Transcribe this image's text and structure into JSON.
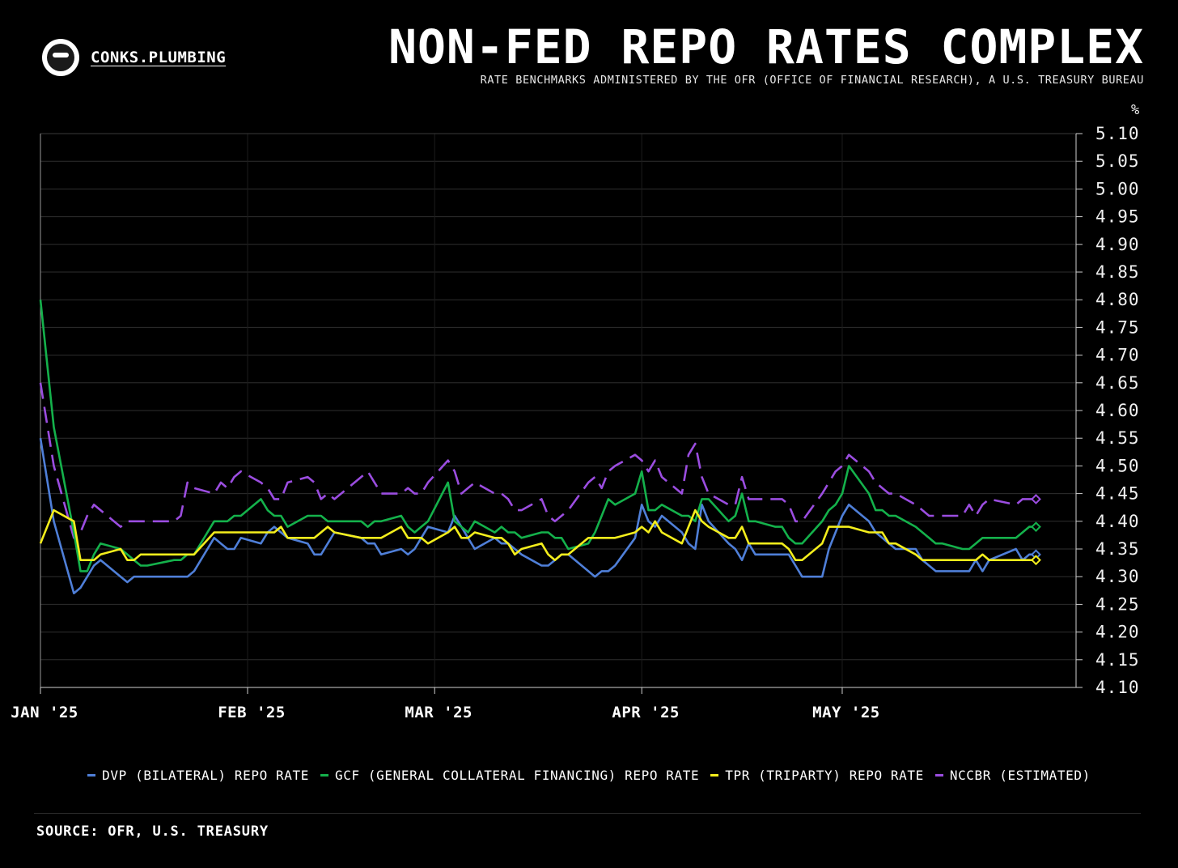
{
  "brand": {
    "name": "CONKS.PLUMBING",
    "logo_icon": "ninja-avatar-icon"
  },
  "header": {
    "title": "NON-FED REPO RATES COMPLEX",
    "subtitle": "RATE BENCHMARKS ADMINISTERED BY THE OFR (OFFICE OF FINANCIAL RESEARCH), A U.S. TREASURY BUREAU"
  },
  "footer": {
    "source": "SOURCE: OFR, U.S. TREASURY"
  },
  "chart_data": {
    "type": "line",
    "title": "NON-FED REPO RATES COMPLEX",
    "ylabel": "%",
    "ylim": [
      4.1,
      5.1
    ],
    "xlim": [
      "2025-01-01",
      "2025-06-05"
    ],
    "y_ticks": [
      "4.10",
      "4.15",
      "4.20",
      "4.25",
      "4.30",
      "4.35",
      "4.40",
      "4.45",
      "4.50",
      "4.55",
      "4.60",
      "4.65",
      "4.70",
      "4.75",
      "4.80",
      "4.85",
      "4.90",
      "4.95",
      "5.00",
      "5.05",
      "5.10"
    ],
    "x_ticks": [
      {
        "label": "JAN '25",
        "date": "2025-01-01"
      },
      {
        "label": "FEB '25",
        "date": "2025-02-01"
      },
      {
        "label": "MAR '25",
        "date": "2025-03-01"
      },
      {
        "label": "APR '25",
        "date": "2025-04-01"
      },
      {
        "label": "MAY '25",
        "date": "2025-05-01"
      }
    ],
    "grid": true,
    "y_axis_side": "right",
    "legend_position": "bottom",
    "series": [
      {
        "name": "DVP (BILATERAL) REPO RATE",
        "color": "#4f7fd8",
        "dash": "solid",
        "x": [
          "2025-01-01",
          "2025-01-03",
          "2025-01-06",
          "2025-01-07",
          "2025-01-08",
          "2025-01-09",
          "2025-01-10",
          "2025-01-13",
          "2025-01-14",
          "2025-01-15",
          "2025-01-16",
          "2025-01-17",
          "2025-01-21",
          "2025-01-22",
          "2025-01-23",
          "2025-01-24",
          "2025-01-27",
          "2025-01-28",
          "2025-01-29",
          "2025-01-30",
          "2025-01-31",
          "2025-02-03",
          "2025-02-04",
          "2025-02-05",
          "2025-02-06",
          "2025-02-07",
          "2025-02-10",
          "2025-02-11",
          "2025-02-12",
          "2025-02-13",
          "2025-02-14",
          "2025-02-18",
          "2025-02-19",
          "2025-02-20",
          "2025-02-21",
          "2025-02-24",
          "2025-02-25",
          "2025-02-26",
          "2025-02-27",
          "2025-02-28",
          "2025-03-03",
          "2025-03-04",
          "2025-03-05",
          "2025-03-06",
          "2025-03-07",
          "2025-03-10",
          "2025-03-11",
          "2025-03-12",
          "2025-03-13",
          "2025-03-14",
          "2025-03-17",
          "2025-03-18",
          "2025-03-19",
          "2025-03-20",
          "2025-03-21",
          "2025-03-24",
          "2025-03-25",
          "2025-03-26",
          "2025-03-27",
          "2025-03-28",
          "2025-03-31",
          "2025-04-01",
          "2025-04-02",
          "2025-04-03",
          "2025-04-04",
          "2025-04-07",
          "2025-04-08",
          "2025-04-09",
          "2025-04-10",
          "2025-04-11",
          "2025-04-14",
          "2025-04-15",
          "2025-04-16",
          "2025-04-17",
          "2025-04-18",
          "2025-04-21",
          "2025-04-22",
          "2025-04-23",
          "2025-04-24",
          "2025-04-25",
          "2025-04-28",
          "2025-04-29",
          "2025-04-30",
          "2025-05-01",
          "2025-05-02",
          "2025-05-05",
          "2025-05-06",
          "2025-05-07",
          "2025-05-08",
          "2025-05-09",
          "2025-05-12",
          "2025-05-13",
          "2025-05-14",
          "2025-05-15",
          "2025-05-16",
          "2025-05-19",
          "2025-05-20",
          "2025-05-21",
          "2025-05-22",
          "2025-05-23",
          "2025-05-27",
          "2025-05-28",
          "2025-05-29",
          "2025-05-30"
        ],
        "values": [
          4.55,
          4.4,
          4.27,
          4.28,
          4.3,
          4.32,
          4.33,
          4.3,
          4.29,
          4.3,
          4.3,
          4.3,
          4.3,
          4.3,
          4.3,
          4.31,
          4.37,
          4.36,
          4.35,
          4.35,
          4.37,
          4.36,
          4.38,
          4.39,
          4.38,
          4.37,
          4.36,
          4.34,
          4.34,
          4.36,
          4.38,
          4.37,
          4.36,
          4.36,
          4.34,
          4.35,
          4.34,
          4.35,
          4.37,
          4.39,
          4.38,
          4.41,
          4.39,
          4.37,
          4.35,
          4.37,
          4.36,
          4.36,
          4.35,
          4.34,
          4.32,
          4.32,
          4.33,
          4.34,
          4.34,
          4.31,
          4.3,
          4.31,
          4.31,
          4.32,
          4.37,
          4.43,
          4.4,
          4.39,
          4.41,
          4.38,
          4.36,
          4.35,
          4.43,
          4.4,
          4.36,
          4.35,
          4.33,
          4.36,
          4.34,
          4.34,
          4.34,
          4.34,
          4.32,
          4.3,
          4.3,
          4.35,
          4.38,
          4.41,
          4.43,
          4.4,
          4.38,
          4.37,
          4.36,
          4.35,
          4.35,
          4.33,
          4.32,
          4.31,
          4.31,
          4.31,
          4.31,
          4.33,
          4.31,
          4.33,
          4.35,
          4.33,
          4.34,
          4.34
        ]
      },
      {
        "name": "GCF (GENERAL COLLATERAL FINANCING) REPO RATE",
        "color": "#14b14b",
        "dash": "solid",
        "x": [
          "2025-01-01",
          "2025-01-03",
          "2025-01-06",
          "2025-01-07",
          "2025-01-08",
          "2025-01-09",
          "2025-01-10",
          "2025-01-13",
          "2025-01-14",
          "2025-01-15",
          "2025-01-16",
          "2025-01-17",
          "2025-01-21",
          "2025-01-22",
          "2025-01-23",
          "2025-01-24",
          "2025-01-27",
          "2025-01-28",
          "2025-01-29",
          "2025-01-30",
          "2025-01-31",
          "2025-02-03",
          "2025-02-04",
          "2025-02-05",
          "2025-02-06",
          "2025-02-07",
          "2025-02-10",
          "2025-02-11",
          "2025-02-12",
          "2025-02-13",
          "2025-02-14",
          "2025-02-18",
          "2025-02-19",
          "2025-02-20",
          "2025-02-21",
          "2025-02-24",
          "2025-02-25",
          "2025-02-26",
          "2025-02-27",
          "2025-02-28",
          "2025-03-03",
          "2025-03-04",
          "2025-03-05",
          "2025-03-06",
          "2025-03-07",
          "2025-03-10",
          "2025-03-11",
          "2025-03-12",
          "2025-03-13",
          "2025-03-14",
          "2025-03-17",
          "2025-03-18",
          "2025-03-19",
          "2025-03-20",
          "2025-03-21",
          "2025-03-24",
          "2025-03-25",
          "2025-03-26",
          "2025-03-27",
          "2025-03-28",
          "2025-03-31",
          "2025-04-01",
          "2025-04-02",
          "2025-04-03",
          "2025-04-04",
          "2025-04-07",
          "2025-04-08",
          "2025-04-09",
          "2025-04-10",
          "2025-04-11",
          "2025-04-14",
          "2025-04-15",
          "2025-04-16",
          "2025-04-17",
          "2025-04-18",
          "2025-04-21",
          "2025-04-22",
          "2025-04-23",
          "2025-04-24",
          "2025-04-25",
          "2025-04-28",
          "2025-04-29",
          "2025-04-30",
          "2025-05-01",
          "2025-05-02",
          "2025-05-05",
          "2025-05-06",
          "2025-05-07",
          "2025-05-08",
          "2025-05-09",
          "2025-05-12",
          "2025-05-13",
          "2025-05-14",
          "2025-05-15",
          "2025-05-16",
          "2025-05-19",
          "2025-05-20",
          "2025-05-21",
          "2025-05-22",
          "2025-05-23",
          "2025-05-27",
          "2025-05-28",
          "2025-05-29",
          "2025-05-30"
        ],
        "values": [
          4.8,
          4.57,
          4.38,
          4.31,
          4.31,
          4.34,
          4.36,
          4.35,
          4.34,
          4.33,
          4.32,
          4.32,
          4.33,
          4.33,
          4.34,
          4.34,
          4.4,
          4.4,
          4.4,
          4.41,
          4.41,
          4.44,
          4.42,
          4.41,
          4.41,
          4.39,
          4.41,
          4.41,
          4.41,
          4.4,
          4.4,
          4.4,
          4.39,
          4.4,
          4.4,
          4.41,
          4.39,
          4.38,
          4.39,
          4.4,
          4.47,
          4.4,
          4.39,
          4.38,
          4.4,
          4.38,
          4.39,
          4.38,
          4.38,
          4.37,
          4.38,
          4.38,
          4.37,
          4.37,
          4.35,
          4.36,
          4.38,
          4.41,
          4.44,
          4.43,
          4.45,
          4.49,
          4.42,
          4.42,
          4.43,
          4.41,
          4.41,
          4.4,
          4.44,
          4.44,
          4.4,
          4.41,
          4.45,
          4.4,
          4.4,
          4.39,
          4.39,
          4.37,
          4.36,
          4.36,
          4.4,
          4.42,
          4.43,
          4.45,
          4.5,
          4.45,
          4.42,
          4.42,
          4.41,
          4.41,
          4.39,
          4.38,
          4.37,
          4.36,
          4.36,
          4.35,
          4.35,
          4.36,
          4.37,
          4.37,
          4.37,
          4.38,
          4.39,
          4.39
        ]
      },
      {
        "name": "TPR (TRIPARTY) REPO RATE",
        "color": "#f4ee1c",
        "dash": "solid",
        "x": [
          "2025-01-01",
          "2025-01-03",
          "2025-01-06",
          "2025-01-07",
          "2025-01-08",
          "2025-01-09",
          "2025-01-10",
          "2025-01-13",
          "2025-01-14",
          "2025-01-15",
          "2025-01-16",
          "2025-01-17",
          "2025-01-21",
          "2025-01-22",
          "2025-01-23",
          "2025-01-24",
          "2025-01-27",
          "2025-01-28",
          "2025-01-29",
          "2025-01-30",
          "2025-01-31",
          "2025-02-03",
          "2025-02-04",
          "2025-02-05",
          "2025-02-06",
          "2025-02-07",
          "2025-02-10",
          "2025-02-11",
          "2025-02-12",
          "2025-02-13",
          "2025-02-14",
          "2025-02-18",
          "2025-02-19",
          "2025-02-20",
          "2025-02-21",
          "2025-02-24",
          "2025-02-25",
          "2025-02-26",
          "2025-02-27",
          "2025-02-28",
          "2025-03-03",
          "2025-03-04",
          "2025-03-05",
          "2025-03-06",
          "2025-03-07",
          "2025-03-10",
          "2025-03-11",
          "2025-03-12",
          "2025-03-13",
          "2025-03-14",
          "2025-03-17",
          "2025-03-18",
          "2025-03-19",
          "2025-03-20",
          "2025-03-21",
          "2025-03-24",
          "2025-03-25",
          "2025-03-26",
          "2025-03-27",
          "2025-03-28",
          "2025-03-31",
          "2025-04-01",
          "2025-04-02",
          "2025-04-03",
          "2025-04-04",
          "2025-04-07",
          "2025-04-08",
          "2025-04-09",
          "2025-04-10",
          "2025-04-11",
          "2025-04-14",
          "2025-04-15",
          "2025-04-16",
          "2025-04-17",
          "2025-04-18",
          "2025-04-21",
          "2025-04-22",
          "2025-04-23",
          "2025-04-24",
          "2025-04-25",
          "2025-04-28",
          "2025-04-29",
          "2025-04-30",
          "2025-05-01",
          "2025-05-02",
          "2025-05-05",
          "2025-05-06",
          "2025-05-07",
          "2025-05-08",
          "2025-05-09",
          "2025-05-12",
          "2025-05-13",
          "2025-05-14",
          "2025-05-15",
          "2025-05-16",
          "2025-05-19",
          "2025-05-20",
          "2025-05-21",
          "2025-05-22",
          "2025-05-23",
          "2025-05-27",
          "2025-05-28",
          "2025-05-29",
          "2025-05-30"
        ],
        "values": [
          4.36,
          4.42,
          4.4,
          4.33,
          4.33,
          4.33,
          4.34,
          4.35,
          4.33,
          4.33,
          4.34,
          4.34,
          4.34,
          4.34,
          4.34,
          4.34,
          4.38,
          4.38,
          4.38,
          4.38,
          4.38,
          4.38,
          4.38,
          4.38,
          4.39,
          4.37,
          4.37,
          4.37,
          4.38,
          4.39,
          4.38,
          4.37,
          4.37,
          4.37,
          4.37,
          4.39,
          4.37,
          4.37,
          4.37,
          4.36,
          4.38,
          4.39,
          4.37,
          4.37,
          4.38,
          4.37,
          4.37,
          4.36,
          4.34,
          4.35,
          4.36,
          4.34,
          4.33,
          4.34,
          4.34,
          4.37,
          4.37,
          4.37,
          4.37,
          4.37,
          4.38,
          4.39,
          4.38,
          4.4,
          4.38,
          4.36,
          4.39,
          4.42,
          4.4,
          4.39,
          4.37,
          4.37,
          4.39,
          4.36,
          4.36,
          4.36,
          4.36,
          4.35,
          4.33,
          4.33,
          4.36,
          4.39,
          4.39,
          4.39,
          4.39,
          4.38,
          4.38,
          4.38,
          4.36,
          4.36,
          4.34,
          4.33,
          4.33,
          4.33,
          4.33,
          4.33,
          4.33,
          4.33,
          4.34,
          4.33,
          4.33,
          4.33,
          4.33,
          4.33
        ]
      },
      {
        "name": "NCCBR (ESTIMATED)",
        "color": "#9b4de0",
        "dash": "dashed",
        "x": [
          "2025-01-01",
          "2025-01-03",
          "2025-01-06",
          "2025-01-07",
          "2025-01-08",
          "2025-01-09",
          "2025-01-10",
          "2025-01-13",
          "2025-01-14",
          "2025-01-15",
          "2025-01-16",
          "2025-01-17",
          "2025-01-21",
          "2025-01-22",
          "2025-01-23",
          "2025-01-24",
          "2025-01-27",
          "2025-01-28",
          "2025-01-29",
          "2025-01-30",
          "2025-01-31",
          "2025-02-03",
          "2025-02-04",
          "2025-02-05",
          "2025-02-06",
          "2025-02-07",
          "2025-02-10",
          "2025-02-11",
          "2025-02-12",
          "2025-02-13",
          "2025-02-14",
          "2025-02-18",
          "2025-02-19",
          "2025-02-20",
          "2025-02-21",
          "2025-02-24",
          "2025-02-25",
          "2025-02-26",
          "2025-02-27",
          "2025-02-28",
          "2025-03-03",
          "2025-03-04",
          "2025-03-05",
          "2025-03-06",
          "2025-03-07",
          "2025-03-10",
          "2025-03-11",
          "2025-03-12",
          "2025-03-13",
          "2025-03-14",
          "2025-03-17",
          "2025-03-18",
          "2025-03-19",
          "2025-03-20",
          "2025-03-21",
          "2025-03-24",
          "2025-03-25",
          "2025-03-26",
          "2025-03-27",
          "2025-03-28",
          "2025-03-31",
          "2025-04-01",
          "2025-04-02",
          "2025-04-03",
          "2025-04-04",
          "2025-04-07",
          "2025-04-08",
          "2025-04-09",
          "2025-04-10",
          "2025-04-11",
          "2025-04-14",
          "2025-04-15",
          "2025-04-16",
          "2025-04-17",
          "2025-04-18",
          "2025-04-21",
          "2025-04-22",
          "2025-04-23",
          "2025-04-24",
          "2025-04-25",
          "2025-04-28",
          "2025-04-29",
          "2025-04-30",
          "2025-05-01",
          "2025-05-02",
          "2025-05-05",
          "2025-05-06",
          "2025-05-07",
          "2025-05-08",
          "2025-05-09",
          "2025-05-12",
          "2025-05-13",
          "2025-05-14",
          "2025-05-15",
          "2025-05-16",
          "2025-05-19",
          "2025-05-20",
          "2025-05-21",
          "2025-05-22",
          "2025-05-23",
          "2025-05-27",
          "2025-05-28",
          "2025-05-29",
          "2025-05-30"
        ],
        "values": [
          4.65,
          4.5,
          4.37,
          4.38,
          4.41,
          4.43,
          4.42,
          4.39,
          4.4,
          4.4,
          4.4,
          4.4,
          4.4,
          4.41,
          4.47,
          4.46,
          4.45,
          4.47,
          4.46,
          4.48,
          4.49,
          4.47,
          4.46,
          4.44,
          4.44,
          4.47,
          4.48,
          4.47,
          4.44,
          4.45,
          4.44,
          4.48,
          4.49,
          4.47,
          4.45,
          4.45,
          4.46,
          4.45,
          4.45,
          4.47,
          4.51,
          4.49,
          4.45,
          4.46,
          4.47,
          4.45,
          4.45,
          4.44,
          4.42,
          4.42,
          4.44,
          4.41,
          4.4,
          4.41,
          4.42,
          4.47,
          4.48,
          4.46,
          4.49,
          4.5,
          4.52,
          4.51,
          4.49,
          4.51,
          4.48,
          4.45,
          4.52,
          4.54,
          4.48,
          4.45,
          4.43,
          4.43,
          4.48,
          4.44,
          4.44,
          4.44,
          4.44,
          4.43,
          4.4,
          4.4,
          4.45,
          4.47,
          4.49,
          4.5,
          4.52,
          4.49,
          4.47,
          4.46,
          4.45,
          4.45,
          4.43,
          4.42,
          4.41,
          4.41,
          4.41,
          4.41,
          4.43,
          4.41,
          4.43,
          4.44,
          4.43,
          4.44,
          4.44,
          4.44
        ]
      }
    ]
  }
}
